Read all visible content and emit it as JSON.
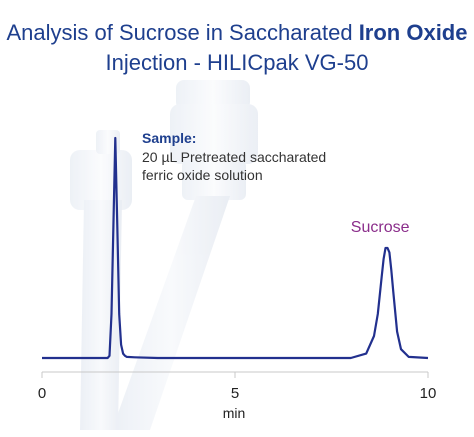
{
  "chart_data": {
    "type": "line",
    "title_plain": "Analysis of Sucrose in Saccharated ",
    "title_bold": "Iron Oxide",
    "subtitle": "Injection - HILICpak VG-50",
    "sample_label": "Sample:",
    "sample_desc_line1": "20 µL Pretreated saccharated",
    "sample_desc_line2": "ferric oxide solution",
    "xlabel": "min",
    "xlim": [
      0,
      10
    ],
    "xticks": [
      0,
      5,
      10
    ],
    "ylim": [
      0,
      100
    ],
    "series": [
      {
        "x": [
          0.0,
          1.7,
          1.75,
          1.8,
          1.85,
          1.9,
          1.95,
          2.0,
          2.05,
          2.1,
          2.15,
          2.2,
          2.4,
          3.0,
          5.0,
          7.5,
          8.0,
          8.4,
          8.6,
          8.7,
          8.8,
          8.85,
          8.9,
          8.95,
          9.0,
          9.05,
          9.1,
          9.2,
          9.3,
          9.5,
          10.0
        ],
        "y": [
          0,
          0,
          1,
          20,
          60,
          100,
          60,
          20,
          6,
          2,
          1,
          0.5,
          0.3,
          0,
          0,
          0,
          0,
          2,
          10,
          20,
          37,
          45,
          50,
          50,
          48,
          40,
          30,
          12,
          4,
          0.5,
          0
        ]
      }
    ],
    "annotations": [
      {
        "text": "Sucrose",
        "x": 8.0,
        "y": 50,
        "color": "#8b2e8b"
      }
    ],
    "line_color": "#22308e",
    "title_color": "#1e3f8e",
    "axis_color": "#c8c8c8"
  }
}
